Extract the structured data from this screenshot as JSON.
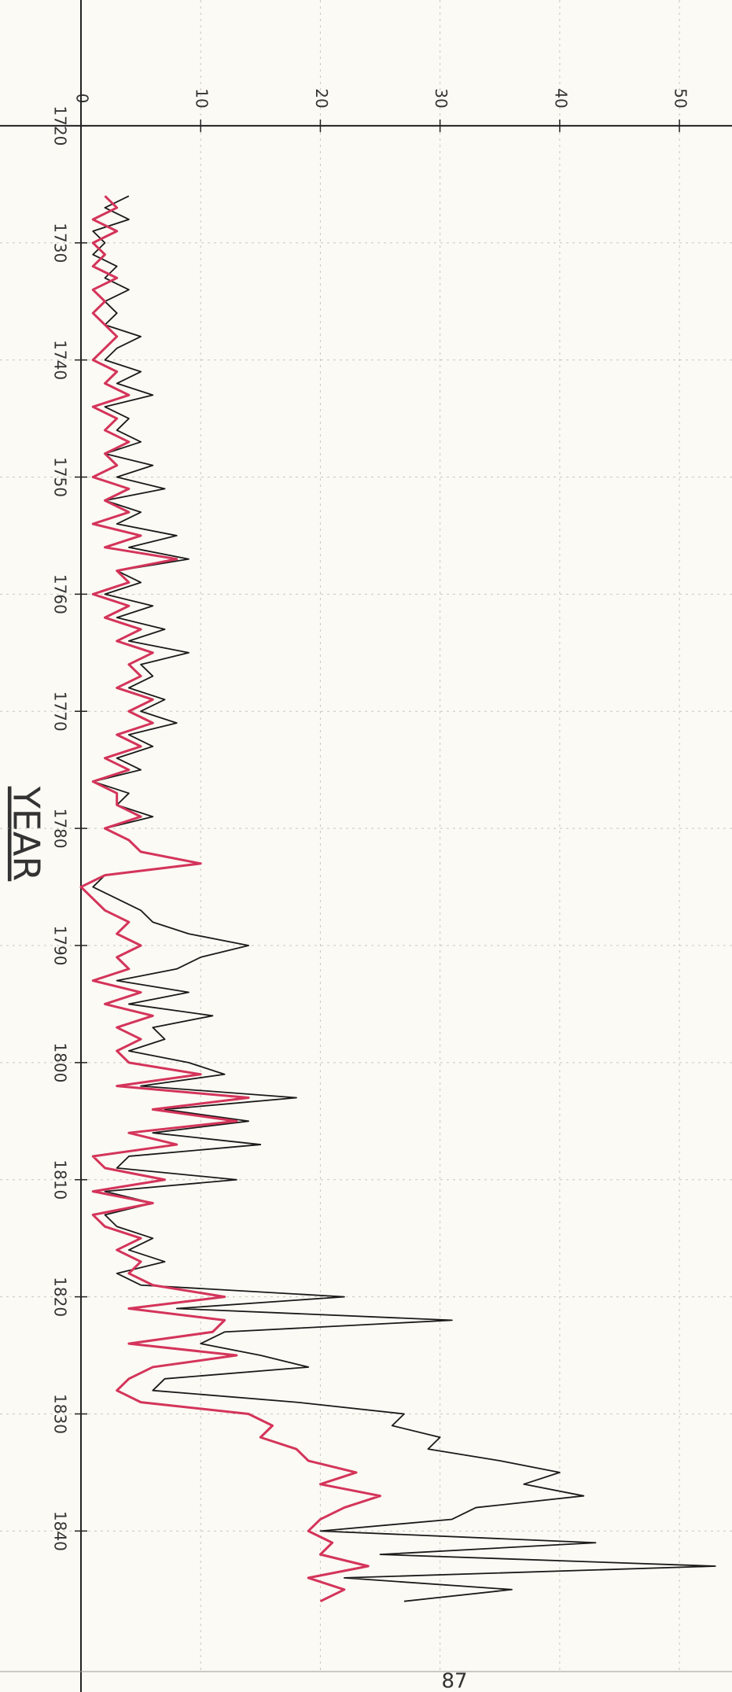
{
  "chart_data": {
    "type": "line",
    "x_label": "YEAR",
    "page_number": "87",
    "x": [
      1726,
      1727,
      1728,
      1729,
      1730,
      1731,
      1732,
      1733,
      1734,
      1735,
      1736,
      1737,
      1738,
      1739,
      1740,
      1741,
      1742,
      1743,
      1744,
      1745,
      1746,
      1747,
      1748,
      1749,
      1750,
      1751,
      1752,
      1753,
      1754,
      1755,
      1756,
      1757,
      1758,
      1759,
      1760,
      1761,
      1762,
      1763,
      1764,
      1765,
      1766,
      1767,
      1768,
      1769,
      1770,
      1771,
      1772,
      1773,
      1774,
      1775,
      1776,
      1777,
      1778,
      1779,
      1780,
      1781,
      1782,
      1783,
      1784,
      1785,
      1786,
      1787,
      1788,
      1789,
      1790,
      1791,
      1792,
      1793,
      1794,
      1795,
      1796,
      1797,
      1798,
      1799,
      1800,
      1801,
      1802,
      1803,
      1804,
      1805,
      1806,
      1807,
      1808,
      1809,
      1810,
      1811,
      1812,
      1813,
      1814,
      1815,
      1816,
      1817,
      1818,
      1819,
      1820,
      1821,
      1822,
      1823,
      1824,
      1825,
      1826,
      1827,
      1828,
      1829,
      1830,
      1831,
      1832,
      1833,
      1834,
      1835,
      1836,
      1837,
      1838,
      1839,
      1840,
      1841,
      1842,
      1843,
      1844,
      1845,
      1846
    ],
    "series": [
      {
        "color": "#1a1a1a",
        "values": [
          4,
          2,
          4,
          1,
          2,
          1,
          3,
          2,
          4,
          2,
          3,
          2,
          5,
          3,
          2,
          5,
          3,
          6,
          2,
          4,
          3,
          5,
          2,
          6,
          3,
          7,
          2,
          5,
          3,
          8,
          4,
          9,
          3,
          5,
          2,
          6,
          3,
          7,
          4,
          9,
          5,
          6,
          4,
          7,
          5,
          8,
          4,
          6,
          3,
          5,
          1,
          4,
          3,
          6,
          2,
          4,
          5,
          10,
          2,
          1,
          3,
          5,
          6,
          9,
          14,
          10,
          8,
          3,
          9,
          4,
          11,
          6,
          7,
          4,
          9,
          12,
          5,
          18,
          7,
          14,
          6,
          15,
          4,
          3,
          13,
          2,
          6,
          2,
          3,
          6,
          4,
          7,
          3,
          5,
          22,
          8,
          31,
          12,
          10,
          15,
          19,
          7,
          6,
          18,
          27,
          26,
          30,
          29,
          35,
          40,
          37,
          42,
          33,
          31,
          20,
          43,
          25,
          53,
          22,
          36,
          27
        ]
      },
      {
        "color": "#d4345a",
        "values": [
          2,
          3,
          1,
          3,
          1,
          2,
          1,
          3,
          1,
          2,
          1,
          2,
          3,
          2,
          1,
          3,
          2,
          4,
          1,
          3,
          2,
          4,
          2,
          3,
          1,
          4,
          2,
          4,
          1,
          5,
          2,
          8,
          3,
          4,
          1,
          4,
          2,
          5,
          3,
          6,
          4,
          5,
          3,
          6,
          4,
          6,
          3,
          5,
          2,
          4,
          1,
          3,
          3,
          5,
          2,
          4,
          5,
          10,
          2,
          0,
          1,
          2,
          4,
          3,
          5,
          3,
          4,
          1,
          5,
          2,
          6,
          3,
          5,
          3,
          4,
          10,
          3,
          14,
          6,
          13,
          4,
          8,
          1,
          2,
          7,
          1,
          6,
          1,
          2,
          5,
          3,
          5,
          4,
          6,
          12,
          4,
          12,
          11,
          4,
          13,
          6,
          4,
          3,
          5,
          14,
          16,
          15,
          18,
          19,
          23,
          20,
          25,
          22,
          20,
          19,
          21,
          20,
          24,
          19,
          22,
          20
        ]
      }
    ],
    "xlim": [
      1710,
      1852
    ],
    "xticks": [
      1720,
      1730,
      1740,
      1750,
      1760,
      1770,
      1780,
      1790,
      1800,
      1810,
      1820,
      1830,
      1840
    ],
    "ylim": [
      0,
      54
    ],
    "yticks": [
      0,
      10,
      20,
      30,
      40,
      50
    ],
    "grid": true
  }
}
